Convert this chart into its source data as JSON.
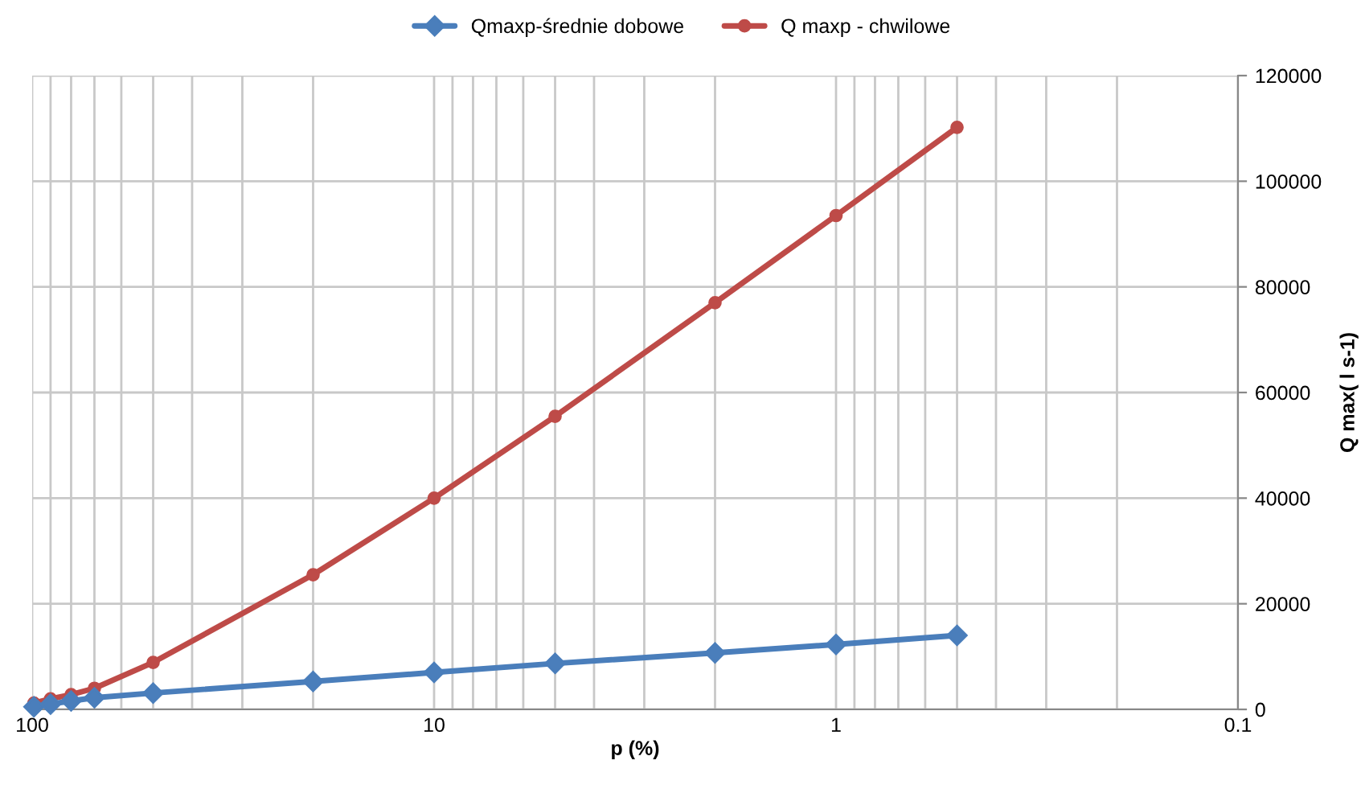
{
  "chart_data": {
    "type": "line",
    "xlabel": "p (%)",
    "ylabel": "Q max( l s-1)",
    "x": [
      99,
      90,
      80,
      70,
      50,
      20,
      10,
      5,
      2,
      1,
      0.5
    ],
    "series": [
      {
        "name": "Qmaxp-średnie dobowe",
        "color": "#4a7ebb",
        "marker": "diamond",
        "values": [
          500,
          1000,
          1600,
          2200,
          3100,
          5300,
          7000,
          8700,
          10700,
          12300,
          14000
        ]
      },
      {
        "name": "Q maxp - chwilowe",
        "color": "#be4b48",
        "marker": "circle",
        "values": [
          1200,
          2000,
          2800,
          4000,
          8900,
          25500,
          40000,
          55500,
          77000,
          93500,
          110200
        ]
      }
    ],
    "log": "x",
    "xlim": [
      100,
      0.1
    ],
    "xticks": [
      100,
      {
        "value": 90,
        "label": null
      },
      {
        "value": 80,
        "label": null
      },
      {
        "value": 70,
        "label": null
      },
      {
        "value": 60,
        "label": null
      },
      {
        "value": 50,
        "label": null
      },
      {
        "value": 40,
        "label": null
      },
      {
        "value": 30,
        "label": null
      },
      {
        "value": 20,
        "label": null
      },
      10,
      {
        "value": 9,
        "label": null
      },
      {
        "value": 8,
        "label": null
      },
      {
        "value": 7,
        "label": null
      },
      {
        "value": 6,
        "label": null
      },
      {
        "value": 5,
        "label": null
      },
      {
        "value": 4,
        "label": null
      },
      {
        "value": 3,
        "label": null
      },
      {
        "value": 2,
        "label": null
      },
      1,
      {
        "value": 0.9,
        "label": null
      },
      {
        "value": 0.8,
        "label": null
      },
      {
        "value": 0.7,
        "label": null
      },
      {
        "value": 0.6,
        "label": null
      },
      {
        "value": 0.5,
        "label": null
      },
      {
        "value": 0.4,
        "label": null
      },
      {
        "value": 0.3,
        "label": null
      },
      {
        "value": 0.2,
        "label": null
      },
      0.1
    ],
    "ylim": [
      0,
      120000
    ],
    "yticks": [
      0,
      20000,
      40000,
      60000,
      80000,
      100000,
      120000
    ],
    "grid": true,
    "legend": "top",
    "line_style": "solid"
  }
}
